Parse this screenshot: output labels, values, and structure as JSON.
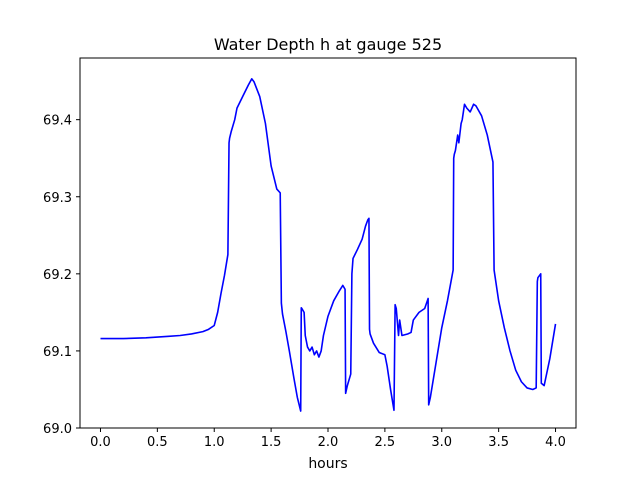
{
  "chart_data": {
    "type": "line",
    "title": "Water Depth h at gauge 525",
    "xlabel": "hours",
    "ylabel": "",
    "xlim": [
      -0.18,
      4.18
    ],
    "ylim": [
      69.0,
      69.48
    ],
    "xticks": [
      0.0,
      0.5,
      1.0,
      1.5,
      2.0,
      2.5,
      3.0,
      3.5,
      4.0
    ],
    "xtick_labels": [
      "0.0",
      "0.5",
      "1.0",
      "1.5",
      "2.0",
      "2.5",
      "3.0",
      "3.5",
      "4.0"
    ],
    "yticks": [
      69.0,
      69.1,
      69.2,
      69.3,
      69.4
    ],
    "ytick_labels": [
      "69.0",
      "69.1",
      "69.2",
      "69.3",
      "69.4"
    ],
    "grid": false,
    "legend": "none",
    "series": [
      {
        "color": "#0000ff",
        "x": [
          0.0,
          0.2,
          0.4,
          0.6,
          0.7,
          0.8,
          0.9,
          0.95,
          1.0,
          1.03,
          1.06,
          1.09,
          1.12,
          1.13,
          1.135,
          1.15,
          1.18,
          1.2,
          1.25,
          1.3,
          1.33,
          1.35,
          1.4,
          1.45,
          1.5,
          1.55,
          1.58,
          1.59,
          1.6,
          1.63,
          1.66,
          1.7,
          1.73,
          1.76,
          1.765,
          1.77,
          1.79,
          1.8,
          1.82,
          1.84,
          1.86,
          1.88,
          1.9,
          1.92,
          1.94,
          1.96,
          2.0,
          2.05,
          2.1,
          2.13,
          2.15,
          2.155,
          2.17,
          2.2,
          2.21,
          2.22,
          2.26,
          2.3,
          2.33,
          2.35,
          2.36,
          2.365,
          2.37,
          2.4,
          2.45,
          2.5,
          2.52,
          2.55,
          2.58,
          2.59,
          2.6,
          2.62,
          2.63,
          2.65,
          2.7,
          2.73,
          2.75,
          2.8,
          2.85,
          2.88,
          2.885,
          2.9,
          2.95,
          3.0,
          3.05,
          3.1,
          3.105,
          3.11,
          3.12,
          3.14,
          3.15,
          3.17,
          3.18,
          3.2,
          3.22,
          3.25,
          3.28,
          3.3,
          3.35,
          3.4,
          3.45,
          3.46,
          3.465,
          3.5,
          3.55,
          3.6,
          3.65,
          3.7,
          3.75,
          3.8,
          3.83,
          3.84,
          3.845,
          3.87,
          3.875,
          3.9,
          3.95,
          4.0
        ],
        "y": [
          69.116,
          69.116,
          69.117,
          69.119,
          69.12,
          69.122,
          69.125,
          69.128,
          69.133,
          69.15,
          69.175,
          69.198,
          69.225,
          69.37,
          69.376,
          69.385,
          69.4,
          69.415,
          69.43,
          69.445,
          69.453,
          69.449,
          69.43,
          69.395,
          69.34,
          69.31,
          69.305,
          69.162,
          69.148,
          69.125,
          69.1,
          69.065,
          69.04,
          69.022,
          69.156,
          69.155,
          69.15,
          69.12,
          69.105,
          69.1,
          69.105,
          69.095,
          69.1,
          69.092,
          69.1,
          69.12,
          69.145,
          69.165,
          69.178,
          69.185,
          69.18,
          69.045,
          69.055,
          69.07,
          69.2,
          69.22,
          69.232,
          69.245,
          69.262,
          69.27,
          69.272,
          69.128,
          69.122,
          69.11,
          69.098,
          69.095,
          69.08,
          69.05,
          69.023,
          69.16,
          69.155,
          69.12,
          69.14,
          69.12,
          69.122,
          69.124,
          69.14,
          69.15,
          69.155,
          69.168,
          69.03,
          69.04,
          69.085,
          69.13,
          69.165,
          69.205,
          69.35,
          69.355,
          69.36,
          69.38,
          69.37,
          69.395,
          69.4,
          69.42,
          69.415,
          69.41,
          69.42,
          69.418,
          69.405,
          69.38,
          69.345,
          69.205,
          69.2,
          69.165,
          69.13,
          69.1,
          69.075,
          69.06,
          69.052,
          69.05,
          69.052,
          69.19,
          69.195,
          69.2,
          69.058,
          69.055,
          69.09,
          69.135
        ]
      }
    ]
  }
}
